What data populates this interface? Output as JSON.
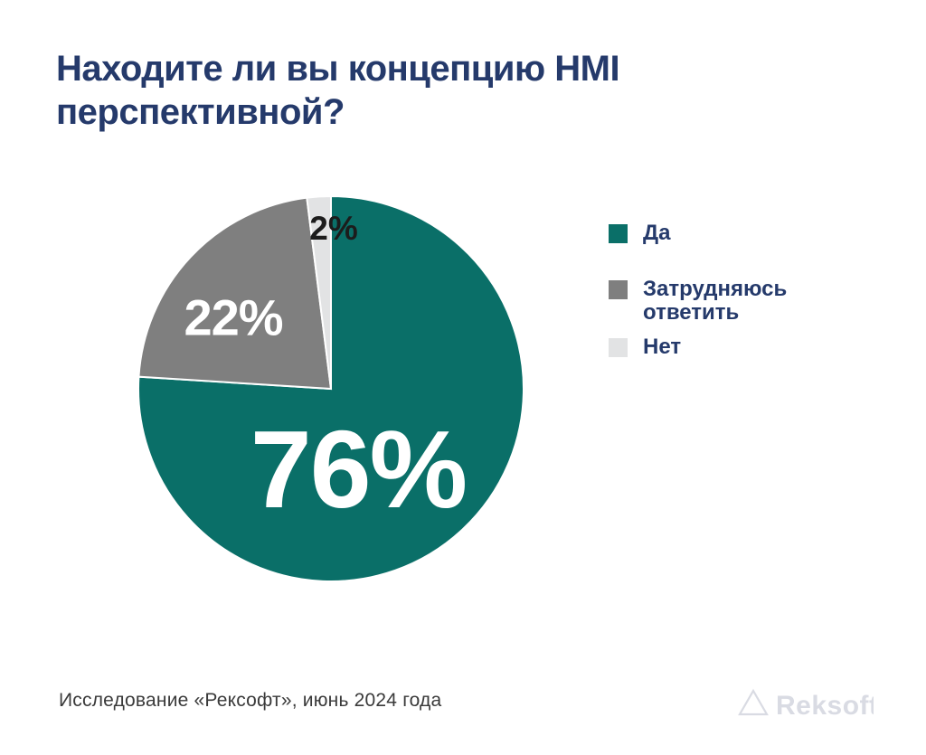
{
  "title": "Находите ли вы концепцию HMI\nперспективной?",
  "chart_data": {
    "type": "pie",
    "title": "Находите ли вы концепцию HMI перспективной?",
    "unit": "%",
    "direction": "clockwise",
    "start_angle_deg": 0,
    "legend_position": "right",
    "slices": [
      {
        "id": "yes",
        "label": "Да",
        "value": 76,
        "display": "76%",
        "color": "#0A6F68",
        "label_color": "#FFFFFF"
      },
      {
        "id": "undecided",
        "label": "Затрудняюсь ответить",
        "value": 22,
        "display": "22%",
        "color": "#7F7F7F",
        "label_color": "#FFFFFF"
      },
      {
        "id": "no",
        "label": "Нет",
        "value": 2,
        "display": "2%",
        "color": "#E2E3E4",
        "label_color": "#1C1C1C"
      }
    ],
    "separator": {
      "color": "#FFFFFF",
      "width": 2
    }
  },
  "legend": {
    "items": [
      {
        "label": "Да",
        "color": "#0A6F68"
      },
      {
        "label": "Затрудняюсь\nответить",
        "color": "#7F7F7F"
      },
      {
        "label": "Нет",
        "color": "#E2E3E4"
      }
    ]
  },
  "footer": {
    "source": "Исследование «Рексофт», июнь 2024 года"
  },
  "logo": {
    "text": "Reksoft",
    "color": "#D9DBE3"
  },
  "colors": {
    "background": "#FFFFFF",
    "title_text": "#253A6B",
    "legend_text": "#253A6B",
    "footer_text": "#3A3A3A"
  }
}
